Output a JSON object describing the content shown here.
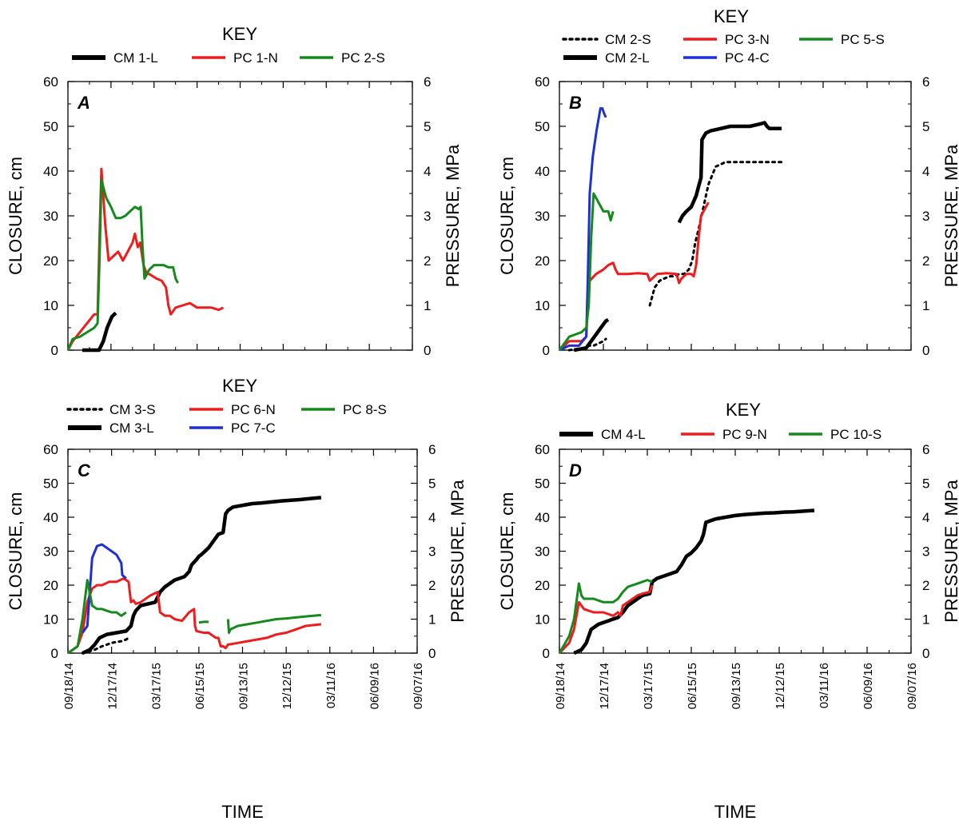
{
  "x_axis_title": "TIME",
  "left_axis_title": "CLOSURE, cm",
  "right_axis_title": "PRESSURE, MPa",
  "key_title": "KEY",
  "left_ticks": [
    "0",
    "10",
    "20",
    "30",
    "40",
    "50",
    "60"
  ],
  "right_ticks": [
    "0",
    "1",
    "2",
    "3",
    "4",
    "5",
    "6"
  ],
  "x_ticks": [
    "09/18/14",
    "12/17/14",
    "03/17/15",
    "06/15/15",
    "09/13/15",
    "12/12/15",
    "03/11/16",
    "06/09/16",
    "09/07/16"
  ],
  "panels": [
    {
      "letter": "A",
      "legend": [
        "CM 1-L",
        "PC 1-N",
        "PC 2-S"
      ]
    },
    {
      "letter": "B",
      "legend": [
        "CM 2-S",
        "PC 3-N",
        "PC 5-S",
        "CM 2-L",
        "PC 4-C"
      ]
    },
    {
      "letter": "C",
      "legend": [
        "CM 3-S",
        "PC 6-N",
        "PC 8-S",
        "CM 3-L",
        "PC 7-C"
      ]
    },
    {
      "letter": "D",
      "legend": [
        "CM 4-L",
        "PC 9-N",
        "PC 10-S"
      ]
    }
  ],
  "colors": {
    "CM": "#000000",
    "PC_N": "#ee1c1c",
    "PC_S": "#158a1c",
    "PC_C": "#1f2fd6"
  },
  "chart_data": [
    {
      "type": "line",
      "panel": "A",
      "x_unit": "days since 09/18/14",
      "xlim": [
        "09/18/14",
        "09/07/16"
      ],
      "ylim_left": [
        0,
        60
      ],
      "ylim_right": [
        0,
        6
      ],
      "xlabel": "",
      "ylabel": "CLOSURE, cm",
      "ylabel_right": "PRESSURE, MPa",
      "x_ticks": [
        "09/18/14",
        "12/17/14",
        "03/17/15",
        "06/15/15",
        "09/13/15",
        "12/12/15",
        "03/11/16",
        "06/09/16",
        "09/07/16"
      ],
      "legend": "top",
      "series": [
        {
          "name": "CM 1-L",
          "axis": "left",
          "style": "solid-thick",
          "color": "#000000",
          "x": [
            30,
            65,
            74,
            82,
            92,
            100
          ],
          "y": [
            0,
            0,
            2,
            5,
            7.5,
            8.3
          ]
        },
        {
          "name": "PC 1-N",
          "axis": "right",
          "style": "solid",
          "color": "#ee1c1c",
          "x": [
            0,
            10,
            25,
            55,
            62,
            66,
            70,
            78,
            85,
            95,
            105,
            115,
            125,
            135,
            140,
            146,
            151,
            158,
            165,
            170,
            185,
            196,
            205,
            210,
            215,
            225,
            240,
            255,
            270,
            285,
            300,
            315,
            325
          ],
          "y": [
            0,
            0.2,
            0.4,
            0.8,
            0.8,
            2.5,
            4.05,
            2.8,
            2.0,
            2.1,
            2.2,
            2.0,
            2.2,
            2.4,
            2.6,
            2.3,
            2.4,
            1.9,
            1.7,
            1.7,
            1.6,
            1.55,
            1.4,
            1.0,
            0.8,
            0.95,
            1.0,
            1.05,
            0.95,
            0.95,
            0.95,
            0.9,
            0.95
          ]
        },
        {
          "name": "PC 2-S",
          "axis": "right",
          "style": "solid",
          "color": "#158a1c",
          "x": [
            0,
            10,
            25,
            55,
            62,
            66,
            70,
            80,
            90,
            100,
            110,
            120,
            130,
            140,
            148,
            152,
            156,
            160,
            170,
            180,
            190,
            200,
            210,
            220,
            225,
            230
          ],
          "y": [
            0,
            0.25,
            0.3,
            0.5,
            0.6,
            2.0,
            3.8,
            3.4,
            3.2,
            2.95,
            2.95,
            3.0,
            3.1,
            3.2,
            3.15,
            3.2,
            2.3,
            1.6,
            1.8,
            1.9,
            1.9,
            1.9,
            1.85,
            1.85,
            1.6,
            1.5
          ]
        }
      ]
    },
    {
      "type": "line",
      "panel": "B",
      "x_unit": "days since 09/18/14",
      "xlim": [
        "09/18/14",
        "09/07/16"
      ],
      "ylim_left": [
        0,
        60
      ],
      "ylim_right": [
        0,
        6
      ],
      "xlabel": "",
      "ylabel": "CLOSURE, cm",
      "ylabel_right": "PRESSURE, MPa",
      "x_ticks": [
        "09/18/14",
        "12/17/14",
        "03/17/15",
        "06/15/15",
        "09/13/15",
        "12/12/15",
        "03/11/16",
        "06/09/16",
        "09/07/16"
      ],
      "legend": "top",
      "series": [
        {
          "name": "CM 2-S",
          "axis": "left",
          "style": "dotted",
          "color": "#000000",
          "x": [
            20,
            50,
            60,
            70,
            80,
            90,
            95
          ],
          "y": [
            0,
            0.5,
            1.0,
            1.0,
            1.5,
            2.0,
            2.5
          ],
          "x2": [
            185,
            195,
            205,
            215,
            225,
            235,
            245,
            255,
            265,
            272,
            278,
            285,
            295,
            305,
            320,
            340,
            360,
            380,
            400,
            420,
            440,
            455
          ],
          "y2": [
            10,
            14,
            15.5,
            16,
            16.5,
            16.5,
            17,
            17,
            18,
            20,
            24,
            27,
            32,
            37,
            41,
            42,
            42,
            42,
            42,
            42,
            42,
            42
          ]
        },
        {
          "name": "CM 2-L",
          "axis": "left",
          "style": "solid-thick",
          "color": "#000000",
          "x": [
            30,
            55,
            65,
            75,
            85,
            95,
            100
          ],
          "y": [
            0,
            0.5,
            2,
            3.5,
            5,
            6.5,
            6.8
          ],
          "x2": [
            245,
            252,
            260,
            270,
            280,
            286,
            290,
            292,
            300,
            310,
            330,
            350,
            370,
            390,
            410,
            420,
            425,
            430,
            440,
            455
          ],
          "y2": [
            28.5,
            30,
            31,
            32,
            34.5,
            37,
            38.5,
            47,
            48.5,
            49,
            49.5,
            50,
            50,
            50,
            50.5,
            50.8,
            50,
            49.5,
            49.5,
            49.5
          ]
        },
        {
          "name": "PC 3-N",
          "axis": "right",
          "style": "solid",
          "color": "#ee1c1c",
          "x": [
            0,
            20,
            45,
            55,
            58,
            62,
            75,
            90,
            100,
            110,
            115,
            120,
            140,
            160,
            180,
            185,
            190,
            200,
            220,
            240,
            245,
            250,
            260,
            270,
            275,
            280,
            285,
            290,
            295,
            305
          ],
          "y": [
            0,
            0.2,
            0.2,
            0.3,
            1.0,
            1.55,
            1.7,
            1.8,
            1.9,
            1.95,
            1.8,
            1.7,
            1.7,
            1.72,
            1.7,
            1.55,
            1.6,
            1.7,
            1.72,
            1.7,
            1.5,
            1.6,
            1.7,
            1.7,
            1.65,
            1.9,
            2.5,
            3.0,
            3.1,
            3.3
          ]
        },
        {
          "name": "PC 4-C",
          "axis": "right",
          "style": "solid",
          "color": "#1f2fd6",
          "x": [
            0,
            20,
            40,
            55,
            58,
            62,
            68,
            76,
            84,
            88,
            91,
            95
          ],
          "y": [
            0,
            0.1,
            0.1,
            0.3,
            1.5,
            3.5,
            4.3,
            4.9,
            5.4,
            5.4,
            5.3,
            5.2
          ]
        },
        {
          "name": "PC 5-S",
          "axis": "right",
          "style": "solid",
          "color": "#158a1c",
          "x": [
            0,
            20,
            45,
            55,
            60,
            65,
            70,
            80,
            90,
            100,
            105,
            110
          ],
          "y": [
            0,
            0.3,
            0.4,
            0.5,
            1.0,
            2.5,
            3.5,
            3.3,
            3.1,
            3.1,
            2.9,
            3.1
          ]
        }
      ]
    },
    {
      "type": "line",
      "panel": "C",
      "x_unit": "days since 09/18/14",
      "xlim": [
        "09/18/14",
        "09/07/16"
      ],
      "ylim_left": [
        0,
        60
      ],
      "ylim_right": [
        0,
        6
      ],
      "xlabel": "TIME",
      "ylabel": "CLOSURE, cm",
      "ylabel_right": "PRESSURE, MPa",
      "x_ticks": [
        "09/18/14",
        "12/17/14",
        "03/17/15",
        "06/15/15",
        "09/13/15",
        "12/12/15",
        "03/11/16",
        "06/09/16",
        "09/07/16"
      ],
      "legend": "top",
      "series": [
        {
          "name": "CM 3-S",
          "axis": "left",
          "style": "dotted",
          "color": "#000000",
          "x": [
            30,
            55,
            70,
            80,
            90,
            100,
            110,
            120,
            125
          ],
          "y": [
            0,
            1,
            2,
            2.5,
            3,
            3.3,
            3.5,
            4,
            4.5
          ]
        },
        {
          "name": "CM 3-L",
          "axis": "left",
          "style": "solid-thick",
          "color": "#000000",
          "x": [
            30,
            45,
            55,
            65,
            80,
            100,
            120,
            130,
            135,
            140,
            150,
            165,
            180,
            190,
            200,
            210,
            220,
            230,
            240,
            250,
            255,
            265,
            270,
            275,
            290,
            300,
            310,
            320,
            325,
            330,
            340,
            360,
            380,
            400,
            420,
            440,
            460,
            480,
            500,
            522
          ],
          "y": [
            0,
            1,
            2.5,
            4.5,
            5.5,
            6,
            6.5,
            8,
            11,
            12.5,
            14,
            14.5,
            15,
            18,
            19.5,
            20.5,
            21.5,
            22,
            22.5,
            24,
            26,
            27.5,
            28.5,
            29,
            31,
            33,
            35,
            35.5,
            41,
            42,
            43,
            43.5,
            44,
            44.2,
            44.5,
            44.8,
            45,
            45.2,
            45.5,
            45.8
          ]
        },
        {
          "name": "PC 6-N",
          "axis": "right",
          "style": "solid",
          "color": "#ee1c1c",
          "x": [
            0,
            20,
            30,
            40,
            50,
            60,
            70,
            85,
            100,
            115,
            125,
            130,
            135,
            140,
            150,
            170,
            185,
            190,
            200,
            210,
            220,
            235,
            250,
            260,
            262,
            265,
            280,
            290,
            300,
            305,
            310,
            315,
            320,
            325,
            330,
            350,
            370,
            390,
            410,
            430,
            450,
            470,
            490,
            522
          ],
          "y": [
            0,
            0.2,
            0.6,
            1.5,
            1.9,
            2.0,
            2.0,
            2.1,
            2.1,
            2.2,
            2.1,
            1.5,
            1.55,
            1.45,
            1.5,
            1.7,
            1.8,
            1.2,
            1.1,
            1.1,
            1.0,
            0.95,
            1.2,
            1.3,
            0.8,
            0.65,
            0.6,
            0.6,
            0.5,
            0.45,
            0.45,
            0.2,
            0.2,
            0.15,
            0.25,
            0.3,
            0.35,
            0.4,
            0.45,
            0.55,
            0.6,
            0.7,
            0.8,
            0.85
          ]
        },
        {
          "name": "PC 7-C",
          "axis": "right",
          "style": "solid",
          "color": "#1f2fd6",
          "x": [
            30,
            40,
            50,
            60,
            70,
            80,
            90,
            100,
            110,
            112,
            120
          ],
          "y": [
            0.6,
            0.8,
            2.8,
            3.15,
            3.2,
            3.1,
            3.0,
            2.9,
            2.65,
            2.3,
            2.2
          ]
        },
        {
          "name": "PC 8-S",
          "axis": "right",
          "style": "solid",
          "color": "#158a1c",
          "x": [
            0,
            20,
            30,
            40,
            50,
            60,
            70,
            80,
            90,
            100,
            110,
            120
          ],
          "y": [
            0,
            0.2,
            1.0,
            2.15,
            1.4,
            1.3,
            1.3,
            1.25,
            1.2,
            1.2,
            1.1,
            1.2
          ],
          "x2": [
            270,
            280,
            290
          ],
          "y2": [
            0.9,
            0.92,
            0.92
          ],
          "x3": [
            330,
            332,
            335,
            350,
            370,
            390,
            410,
            430,
            450,
            470,
            490,
            522
          ],
          "y3": [
            1.0,
            0.6,
            0.7,
            0.8,
            0.85,
            0.9,
            0.95,
            1.0,
            1.02,
            1.05,
            1.08,
            1.12
          ]
        }
      ]
    },
    {
      "type": "line",
      "panel": "D",
      "x_unit": "days since 09/18/14",
      "xlim": [
        "09/18/14",
        "09/07/16"
      ],
      "ylim_left": [
        0,
        60
      ],
      "ylim_right": [
        0,
        6
      ],
      "xlabel": "TIME",
      "ylabel": "CLOSURE, cm",
      "ylabel_right": "PRESSURE, MPa",
      "x_ticks": [
        "09/18/14",
        "12/17/14",
        "03/17/15",
        "06/15/15",
        "09/13/15",
        "12/12/15",
        "03/11/16",
        "06/09/16",
        "09/07/16"
      ],
      "legend": "top",
      "series": [
        {
          "name": "CM 4-L",
          "axis": "left",
          "style": "solid-thick",
          "color": "#000000",
          "x": [
            30,
            45,
            55,
            65,
            80,
            100,
            120,
            130,
            140,
            150,
            170,
            185,
            190,
            200,
            210,
            230,
            240,
            250,
            260,
            270,
            280,
            290,
            295,
            300,
            320,
            340,
            360,
            380,
            400,
            420,
            440,
            460,
            480,
            500,
            522
          ],
          "y": [
            0,
            1,
            3,
            7,
            8.5,
            9.5,
            10.5,
            12,
            14,
            15,
            17,
            17.5,
            21,
            22,
            22.5,
            23.5,
            24,
            26,
            28.5,
            29.5,
            31,
            33,
            35,
            38.5,
            39.5,
            40,
            40.5,
            40.8,
            41,
            41.2,
            41.3,
            41.5,
            41.6,
            41.8,
            42
          ]
        },
        {
          "name": "PC 9-N",
          "axis": "right",
          "style": "solid",
          "color": "#ee1c1c",
          "x": [
            0,
            20,
            30,
            40,
            50,
            60,
            70,
            90,
            110,
            120,
            125,
            130,
            140,
            150,
            160,
            170,
            185,
            190
          ],
          "y": [
            0,
            0.3,
            0.7,
            1.5,
            1.3,
            1.25,
            1.2,
            1.2,
            1.1,
            1.2,
            1.1,
            1.4,
            1.5,
            1.6,
            1.7,
            1.75,
            1.8,
            2.0
          ]
        },
        {
          "name": "PC 10-S",
          "axis": "right",
          "style": "solid",
          "color": "#158a1c",
          "x": [
            0,
            20,
            30,
            40,
            45,
            50,
            60,
            70,
            90,
            110,
            120,
            130,
            140,
            150,
            160,
            170,
            180,
            190
          ],
          "y": [
            0,
            0.5,
            1.0,
            2.05,
            1.7,
            1.6,
            1.6,
            1.6,
            1.5,
            1.5,
            1.6,
            1.8,
            1.95,
            2.0,
            2.05,
            2.1,
            2.15,
            2.1
          ]
        }
      ]
    }
  ]
}
